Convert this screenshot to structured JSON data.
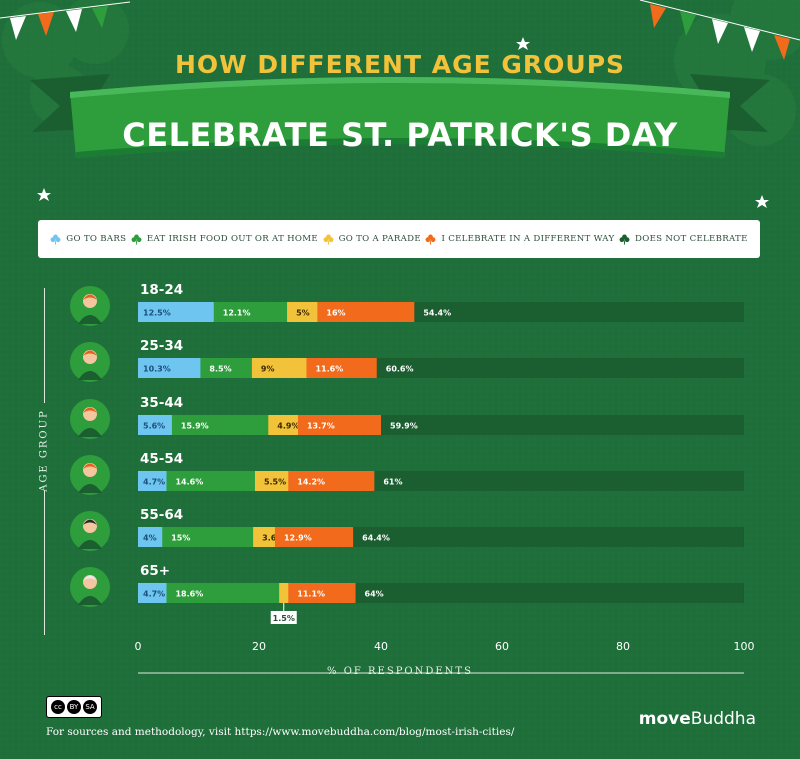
{
  "header": {
    "title_top": "HOW DIFFERENT AGE GROUPS",
    "title_main": "CELEBRATE ST. PATRICK'S DAY"
  },
  "legend": [
    {
      "label": "GO TO BARS",
      "color": "#6ec6f0",
      "icon": "shamrock-icon"
    },
    {
      "label": "EAT IRISH FOOD OUT OR AT HOME",
      "color": "#2e9e3c",
      "icon": "shamrock-icon"
    },
    {
      "label": "GO TO A PARADE",
      "color": "#f2c23a",
      "icon": "shamrock-icon"
    },
    {
      "label": "I CELEBRATE IN A DIFFERENT WAY",
      "color": "#f26a1b",
      "icon": "shamrock-icon"
    },
    {
      "label": "DOES NOT CELEBRATE",
      "color": "#1b5e30",
      "icon": "shamrock-icon"
    }
  ],
  "chart_data": {
    "type": "bar",
    "orientation": "horizontal",
    "stacked": true,
    "title": "HOW DIFFERENT AGE GROUPS CELEBRATE ST. PATRICK'S DAY",
    "xlabel": "% OF RESPONDENTS",
    "ylabel": "AGE GROUP",
    "xlim": [
      0,
      100
    ],
    "xticks": [
      "0",
      "20",
      "40",
      "60",
      "80",
      "100"
    ],
    "categories": [
      "18-24",
      "25-34",
      "35-44",
      "45-54",
      "55-64",
      "65+"
    ],
    "series": [
      {
        "name": "GO TO BARS",
        "color": "#6ec6f0",
        "values": [
          12.5,
          10.3,
          5.6,
          4.7,
          4,
          4.7
        ],
        "labels": [
          "12.5%",
          "10.3%",
          "5.6%",
          "4.7%",
          "4%",
          "4.7%"
        ]
      },
      {
        "name": "EAT IRISH FOOD OUT OR AT HOME",
        "color": "#2e9e3c",
        "values": [
          12.1,
          8.5,
          15.9,
          14.6,
          15,
          18.6
        ],
        "labels": [
          "12.1%",
          "8.5%",
          "15.9%",
          "14.6%",
          "15%",
          "18.6%"
        ]
      },
      {
        "name": "GO TO A PARADE",
        "color": "#f2c23a",
        "values": [
          5,
          9,
          4.9,
          5.5,
          3.6,
          1.5
        ],
        "labels": [
          "5%",
          "9%",
          "4.9%",
          "5.5%",
          "3.6%",
          "1.5%"
        ]
      },
      {
        "name": "I CELEBRATE IN A DIFFERENT WAY",
        "color": "#f26a1b",
        "values": [
          16,
          11.6,
          13.7,
          14.2,
          12.9,
          11.1
        ],
        "labels": [
          "16%",
          "11.6%",
          "13.7%",
          "14.2%",
          "12.9%",
          "11.1%"
        ]
      },
      {
        "name": "DOES NOT CELEBRATE",
        "color": "#1b5e30",
        "values": [
          54.4,
          60.6,
          59.9,
          61,
          64.4,
          64
        ],
        "labels": [
          "54.4%",
          "60.6%",
          "59.9%",
          "61%",
          "64.4%",
          "64%"
        ]
      }
    ]
  },
  "footer": {
    "license": "CC BY SA",
    "license_parts": [
      "cc",
      "BY",
      "SA"
    ],
    "sources": "For sources and methodology, visit https://www.movebuddha.com/blog/most-irish-cities/",
    "brand_a": "move",
    "brand_b": "Buddha"
  }
}
